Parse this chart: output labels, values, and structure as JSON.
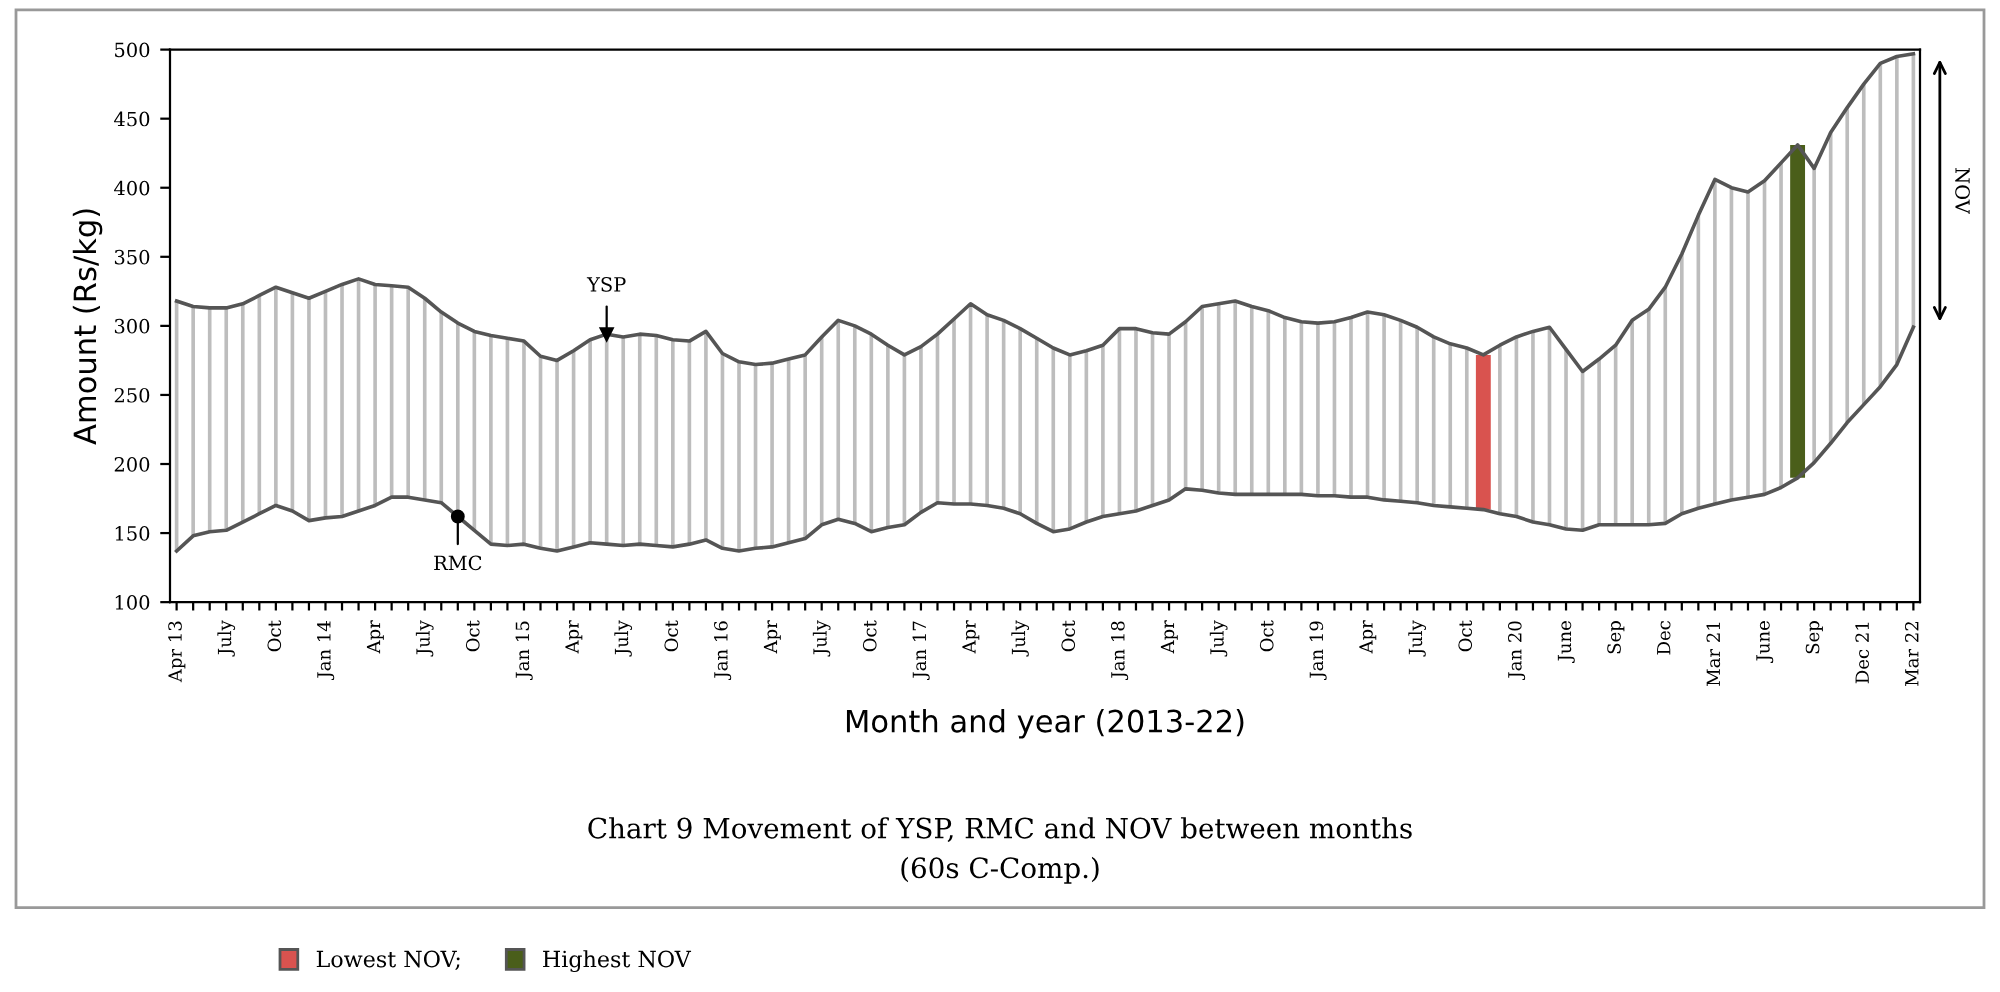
{
  "chart_data": {
    "type": "line",
    "title": "Chart 9 Movement of YSP, RMC and NOV between months",
    "subtitle": "(60s C-Comp.)",
    "xlabel": "Month and year (2013-22)",
    "ylabel": "Amount (Rs/kg)",
    "categories": [
      "Apr 13",
      null,
      null,
      "July",
      null,
      null,
      "Oct",
      null,
      null,
      "Jan 14",
      null,
      null,
      "Apr",
      null,
      null,
      "July",
      null,
      null,
      "Oct",
      null,
      null,
      "Jan 15",
      null,
      null,
      "Apr",
      null,
      null,
      "July",
      null,
      null,
      "Oct",
      null,
      null,
      "Jan 16",
      null,
      null,
      "Apr",
      null,
      null,
      "July",
      null,
      null,
      "Oct",
      null,
      null,
      "Jan 17",
      null,
      null,
      "Apr",
      null,
      null,
      "July",
      null,
      null,
      "Oct",
      null,
      null,
      "Jan 18",
      null,
      null,
      "Apr",
      null,
      null,
      "July",
      null,
      null,
      "Oct",
      null,
      null,
      "Jan 19",
      null,
      null,
      "Apr",
      null,
      null,
      "July",
      null,
      null,
      "Oct",
      null,
      null,
      "Jan 20",
      null,
      null,
      "June",
      null,
      null,
      "Sep",
      null,
      null,
      "Dec",
      null,
      null,
      "Mar 21",
      null,
      null,
      "June",
      null,
      null,
      "Sep",
      null,
      null,
      "Dec 21",
      null,
      null,
      "Mar 22"
    ],
    "series": [
      {
        "name": "NOV",
        "type": "bar",
        "color": "#bdbdbd",
        "base": [
          137,
          148,
          151,
          152,
          158,
          164,
          170,
          166,
          159,
          161,
          162,
          166,
          170,
          176,
          176,
          174,
          172,
          162,
          152,
          142,
          141,
          142,
          139,
          137,
          140,
          143,
          142,
          141,
          142,
          141,
          140,
          142,
          145,
          139,
          137,
          139,
          140,
          143,
          146,
          156,
          160,
          157,
          151,
          154,
          156,
          165,
          172,
          171,
          171,
          170,
          168,
          164,
          157,
          151,
          153,
          158,
          162,
          164,
          166,
          170,
          174,
          182,
          181,
          179,
          178,
          178,
          178,
          178,
          178,
          177,
          177,
          176,
          176,
          174,
          173,
          172,
          170,
          169,
          168,
          null,
          164,
          162,
          158,
          156,
          153,
          152,
          156,
          156,
          156,
          156,
          157,
          164,
          168,
          171,
          174,
          176,
          178,
          183,
          null,
          201,
          215,
          230,
          243,
          256,
          272,
          299
        ],
        "values": [
          181,
          166,
          162,
          161,
          158,
          158,
          158,
          158,
          161,
          164,
          168,
          168,
          160,
          153,
          152,
          146,
          138,
          140,
          144,
          151,
          150,
          147,
          139,
          138,
          142,
          147,
          152,
          151,
          152,
          152,
          150,
          147,
          151,
          141,
          137,
          133,
          133,
          133,
          133,
          136,
          144,
          143,
          143,
          132,
          123,
          120,
          122,
          134,
          145,
          138,
          136,
          134,
          134,
          133,
          126,
          124,
          124,
          134,
          132,
          125,
          120,
          121,
          133,
          137,
          140,
          136,
          133,
          128,
          125,
          125,
          126,
          130,
          134,
          134,
          131,
          127,
          122,
          118,
          116,
          null,
          122,
          130,
          138,
          143,
          130,
          115,
          120,
          130,
          148,
          156,
          171,
          188,
          212,
          235,
          226,
          221,
          227,
          235,
          null,
          213,
          225,
          228,
          232,
          234,
          223,
          198
        ]
      },
      {
        "name": "Lowest NOV;",
        "type": "bar",
        "color": "#d9534f",
        "base": [
          null,
          null,
          null,
          null,
          null,
          null,
          null,
          null,
          null,
          null,
          null,
          null,
          null,
          null,
          null,
          null,
          null,
          null,
          null,
          null,
          null,
          null,
          null,
          null,
          null,
          null,
          null,
          null,
          null,
          null,
          null,
          null,
          null,
          null,
          null,
          null,
          null,
          null,
          null,
          null,
          null,
          null,
          null,
          null,
          null,
          null,
          null,
          null,
          null,
          null,
          null,
          null,
          null,
          null,
          null,
          null,
          null,
          null,
          null,
          null,
          null,
          null,
          null,
          null,
          null,
          null,
          null,
          null,
          null,
          null,
          null,
          null,
          null,
          null,
          null,
          null,
          null,
          null,
          null,
          167,
          null,
          null,
          null,
          null,
          null,
          null,
          null,
          null,
          null,
          null,
          null,
          null,
          null,
          null,
          null,
          null,
          null,
          null,
          null,
          null,
          null,
          null,
          null,
          null,
          null,
          null
        ],
        "values": [
          null,
          null,
          null,
          null,
          null,
          null,
          null,
          null,
          null,
          null,
          null,
          null,
          null,
          null,
          null,
          null,
          null,
          null,
          null,
          null,
          null,
          null,
          null,
          null,
          null,
          null,
          null,
          null,
          null,
          null,
          null,
          null,
          null,
          null,
          null,
          null,
          null,
          null,
          null,
          null,
          null,
          null,
          null,
          null,
          null,
          null,
          null,
          null,
          null,
          null,
          null,
          null,
          null,
          null,
          null,
          null,
          null,
          null,
          null,
          null,
          null,
          null,
          null,
          null,
          null,
          null,
          null,
          null,
          null,
          null,
          null,
          null,
          null,
          null,
          null,
          null,
          null,
          null,
          null,
          112,
          null,
          null,
          null,
          null,
          null,
          null,
          null,
          null,
          null,
          null,
          null,
          null,
          null,
          null,
          null,
          null,
          null,
          null,
          null,
          null,
          null,
          null,
          null,
          null,
          null,
          null
        ]
      },
      {
        "name": "Highest NOV",
        "type": "bar",
        "color": "#4a5e1a",
        "base": [
          null,
          null,
          null,
          null,
          null,
          null,
          null,
          null,
          null,
          null,
          null,
          null,
          null,
          null,
          null,
          null,
          null,
          null,
          null,
          null,
          null,
          null,
          null,
          null,
          null,
          null,
          null,
          null,
          null,
          null,
          null,
          null,
          null,
          null,
          null,
          null,
          null,
          null,
          null,
          null,
          null,
          null,
          null,
          null,
          null,
          null,
          null,
          null,
          null,
          null,
          null,
          null,
          null,
          null,
          null,
          null,
          null,
          null,
          null,
          null,
          null,
          null,
          null,
          null,
          null,
          null,
          null,
          null,
          null,
          null,
          null,
          null,
          null,
          null,
          null,
          null,
          null,
          null,
          null,
          null,
          null,
          null,
          null,
          null,
          null,
          null,
          null,
          null,
          null,
          null,
          null,
          null,
          null,
          null,
          null,
          null,
          null,
          null,
          190,
          null,
          null,
          null,
          null,
          null,
          null,
          null
        ],
        "values": [
          null,
          null,
          null,
          null,
          null,
          null,
          null,
          null,
          null,
          null,
          null,
          null,
          null,
          null,
          null,
          null,
          null,
          null,
          null,
          null,
          null,
          null,
          null,
          null,
          null,
          null,
          null,
          null,
          null,
          null,
          null,
          null,
          null,
          null,
          null,
          null,
          null,
          null,
          null,
          null,
          null,
          null,
          null,
          null,
          null,
          null,
          null,
          null,
          null,
          null,
          null,
          null,
          null,
          null,
          null,
          null,
          null,
          null,
          null,
          null,
          null,
          null,
          null,
          null,
          null,
          null,
          null,
          null,
          null,
          null,
          null,
          null,
          null,
          null,
          null,
          null,
          null,
          null,
          null,
          null,
          null,
          null,
          null,
          null,
          null,
          null,
          null,
          null,
          null,
          null,
          null,
          null,
          null,
          null,
          null,
          null,
          null,
          null,
          241,
          null,
          null,
          null,
          null,
          null,
          null,
          null
        ]
      },
      {
        "name": "YSP",
        "color": "#555555",
        "values": [
          318,
          314,
          313,
          313,
          316,
          322,
          328,
          324,
          320,
          325,
          330,
          334,
          330,
          329,
          328,
          320,
          310,
          302,
          296,
          293,
          291,
          289,
          278,
          275,
          282,
          290,
          294,
          292,
          294,
          293,
          290,
          289,
          296,
          280,
          274,
          272,
          273,
          276,
          279,
          292,
          304,
          300,
          294,
          286,
          279,
          285,
          294,
          305,
          316,
          308,
          304,
          298,
          291,
          284,
          279,
          282,
          286,
          298,
          298,
          295,
          294,
          303,
          314,
          316,
          318,
          314,
          311,
          306,
          303,
          302,
          303,
          306,
          310,
          308,
          304,
          299,
          292,
          287,
          284,
          279,
          286,
          292,
          296,
          299,
          283,
          267,
          276,
          286,
          304,
          312,
          328,
          352,
          380,
          406,
          400,
          397,
          405,
          418,
          431,
          414,
          440,
          458,
          475,
          490,
          495,
          497
        ]
      },
      {
        "name": "RMC",
        "color": "#555555",
        "values": [
          137,
          148,
          151,
          152,
          158,
          164,
          170,
          166,
          159,
          161,
          162,
          166,
          170,
          176,
          176,
          174,
          172,
          162,
          152,
          142,
          141,
          142,
          139,
          137,
          140,
          143,
          142,
          141,
          142,
          141,
          140,
          142,
          145,
          139,
          137,
          139,
          140,
          143,
          146,
          156,
          160,
          157,
          151,
          154,
          156,
          165,
          172,
          171,
          171,
          170,
          168,
          164,
          157,
          151,
          153,
          158,
          162,
          164,
          166,
          170,
          174,
          182,
          181,
          179,
          178,
          178,
          178,
          178,
          178,
          177,
          177,
          176,
          176,
          174,
          173,
          172,
          170,
          169,
          168,
          167,
          164,
          162,
          158,
          156,
          153,
          152,
          156,
          156,
          156,
          156,
          157,
          164,
          168,
          171,
          174,
          176,
          178,
          183,
          190,
          201,
          215,
          230,
          243,
          256,
          272,
          299
        ]
      }
    ],
    "ylim": [
      100,
      500
    ],
    "yticks": [
      100,
      150,
      200,
      250,
      300,
      350,
      400,
      450,
      500
    ],
    "grid": false,
    "legend": "bottom left",
    "marker": "none",
    "line_style": "solid"
  }
}
